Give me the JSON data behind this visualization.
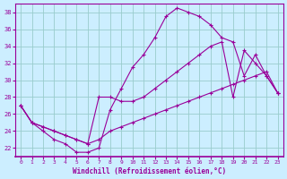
{
  "line1_x": [
    0,
    1,
    2,
    3,
    4,
    5,
    6,
    7,
    8,
    9,
    10,
    11,
    12,
    13,
    14,
    15,
    16,
    17,
    18,
    19,
    20,
    21,
    22,
    23
  ],
  "line1_y": [
    27,
    25,
    24,
    23,
    22.5,
    21.5,
    21.5,
    22,
    26.5,
    29,
    31.5,
    33,
    35,
    37.5,
    38.5,
    38,
    37.5,
    36.5,
    35,
    34.5,
    30.5,
    33,
    30.5,
    28.5
  ],
  "line2_x": [
    0,
    1,
    2,
    3,
    4,
    5,
    6,
    7,
    8,
    9,
    10,
    11,
    12,
    13,
    14,
    15,
    16,
    17,
    18,
    19,
    20,
    21,
    22,
    23
  ],
  "line2_y": [
    27,
    25,
    24.5,
    24,
    23.5,
    23,
    22.5,
    28,
    28,
    27.5,
    27.5,
    28,
    29,
    30,
    31,
    32,
    33,
    34,
    34.5,
    28,
    33.5,
    32,
    30.5,
    28.5
  ],
  "line3_x": [
    0,
    1,
    2,
    3,
    4,
    5,
    6,
    7,
    8,
    9,
    10,
    11,
    12,
    13,
    14,
    15,
    16,
    17,
    18,
    19,
    20,
    21,
    22,
    23
  ],
  "line3_y": [
    27,
    25,
    24.5,
    24,
    23.5,
    23,
    22.5,
    23,
    24,
    24.5,
    25,
    25.5,
    26,
    26.5,
    27,
    27.5,
    28,
    28.5,
    29,
    29.5,
    30,
    30.5,
    31,
    28.5
  ],
  "color": "#990099",
  "bg_color": "#cceeff",
  "grid_color": "#99cccc",
  "xlabel": "Windchill (Refroidissement éolien,°C)",
  "ylim": [
    21.0,
    39.0
  ],
  "xlim": [
    -0.5,
    23.5
  ],
  "yticks": [
    22,
    24,
    26,
    28,
    30,
    32,
    34,
    36,
    38
  ],
  "xticks": [
    0,
    1,
    2,
    3,
    4,
    5,
    6,
    7,
    8,
    9,
    10,
    11,
    12,
    13,
    14,
    15,
    16,
    17,
    18,
    19,
    20,
    21,
    22,
    23
  ]
}
